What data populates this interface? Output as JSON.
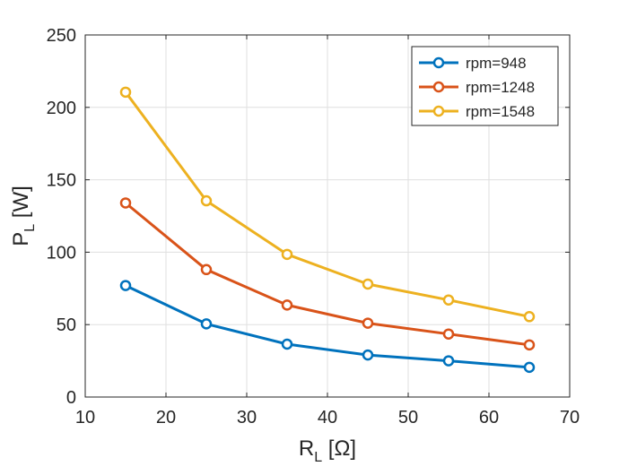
{
  "chart_data": {
    "type": "line",
    "title": "",
    "xlabel": "R",
    "xlabel_subscript": "L",
    "xlabel_unit": " [Ω]",
    "ylabel": "P",
    "ylabel_subscript": "L",
    "ylabel_unit": " [W]",
    "xlim": [
      10,
      70
    ],
    "ylim": [
      0,
      250
    ],
    "xticks": [
      10,
      20,
      30,
      40,
      50,
      60,
      70
    ],
    "yticks": [
      0,
      50,
      100,
      150,
      200,
      250
    ],
    "grid": true,
    "legend_position": "top-right",
    "x": [
      15,
      25,
      35,
      45,
      55,
      65
    ],
    "series": [
      {
        "name": "rpm=948",
        "color": "#0072BD",
        "values": [
          77,
          50.5,
          36.5,
          29,
          25,
          20.5
        ]
      },
      {
        "name": "rpm=1248",
        "color": "#D95319",
        "values": [
          134,
          88,
          63.5,
          51,
          43.5,
          36
        ]
      },
      {
        "name": "rpm=1548",
        "color": "#EDB120",
        "values": [
          210.5,
          135.5,
          98.5,
          78,
          67,
          55.5
        ]
      }
    ]
  }
}
